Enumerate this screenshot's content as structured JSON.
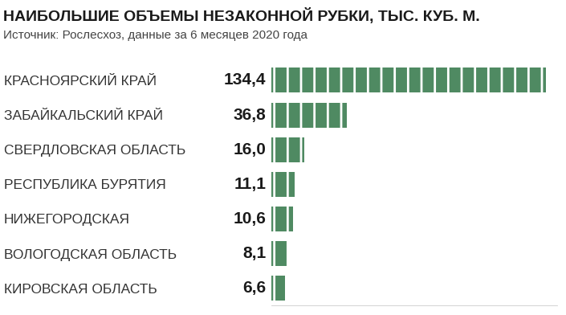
{
  "chart_data": {
    "type": "bar",
    "orientation": "horizontal",
    "title": "НАИБОЛЬШИЕ ОБЪЕМЫ НЕЗАКОННОЙ РУБКИ, ТЫС. КУБ. М.",
    "subtitle": "Источник: Рослесхоз, данные за 6 месяцев 2020 года",
    "categories": [
      "КРАСНОЯРСКИЙ КРАЙ",
      "ЗАБАЙКАЛЬСКИЙ КРАЙ",
      "СВЕРДЛОВСКАЯ ОБЛАСТЬ",
      "РЕСПУБЛИКА БУРЯТИЯ",
      "НИЖЕГОРОДСКАЯ",
      "ВОЛОГОДСКАЯ ОБЛАСТЬ",
      "КИРОВСКАЯ ОБЛАСТЬ"
    ],
    "values": [
      134.4,
      36.8,
      16.0,
      11.1,
      10.6,
      8.1,
      6.6
    ],
    "value_labels": [
      "134,4",
      "36,8",
      "16,0",
      "11,1",
      "10,6",
      "8,1",
      "6,6"
    ],
    "data_labels": true,
    "color": "#4f8a62",
    "xlim": [
      0,
      140
    ],
    "xticks": [],
    "tick_labels": "y",
    "grid": false
  }
}
